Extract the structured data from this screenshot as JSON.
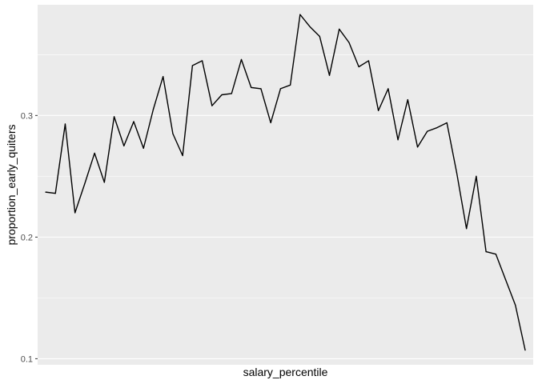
{
  "colors": {
    "panel_background": "#ebebeb",
    "grid_major": "#ffffff",
    "line": "#000000",
    "tick_label": "#4d4d4d",
    "tick_mark": "#333333"
  },
  "chart_data": {
    "type": "line",
    "title": "",
    "xlabel": "salary_percentile",
    "ylabel": "proportion_early_quiters",
    "x_ticks_shown": false,
    "xlim": [
      1,
      50
    ],
    "ylim": [
      0.095,
      0.391
    ],
    "y_ticks": [
      0.1,
      0.2,
      0.3
    ],
    "y_tick_labels": [
      "0.1",
      "0.2",
      "0.3"
    ],
    "y_minor_gridlines": [
      0.15,
      0.25,
      0.35
    ],
    "grid": true,
    "x": [
      1,
      2,
      3,
      4,
      5,
      6,
      7,
      8,
      9,
      10,
      11,
      12,
      13,
      14,
      15,
      16,
      17,
      18,
      19,
      20,
      21,
      22,
      23,
      24,
      25,
      26,
      27,
      28,
      29,
      30,
      31,
      32,
      33,
      34,
      35,
      36,
      37,
      38,
      39,
      40,
      41,
      42,
      43,
      44,
      45,
      46,
      47,
      48,
      49,
      50
    ],
    "series": [
      {
        "values": [
          0.237,
          0.236,
          0.293,
          0.22,
          0.244,
          0.269,
          0.245,
          0.299,
          0.275,
          0.295,
          0.273,
          0.305,
          0.332,
          0.285,
          0.267,
          0.341,
          0.345,
          0.308,
          0.317,
          0.318,
          0.346,
          0.323,
          0.322,
          0.294,
          0.322,
          0.325,
          0.383,
          0.373,
          0.365,
          0.333,
          0.371,
          0.36,
          0.34,
          0.345,
          0.304,
          0.322,
          0.28,
          0.313,
          0.274,
          0.287,
          0.29,
          0.294,
          0.253,
          0.207,
          0.25,
          0.188,
          0.186,
          0.165,
          0.144,
          0.107
        ]
      }
    ]
  }
}
